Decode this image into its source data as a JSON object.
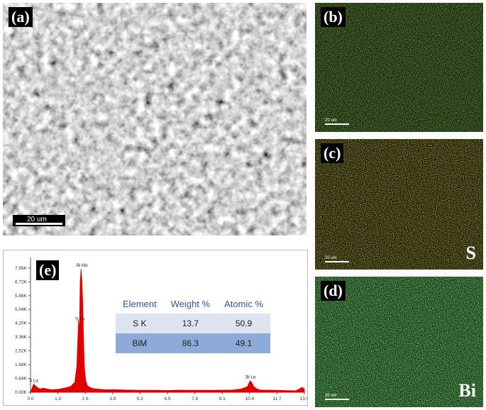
{
  "panels": {
    "a": {
      "label": "(a)",
      "scale_text": "20 um"
    },
    "b": {
      "label": "(b)",
      "scale_text": "20 um",
      "element": ""
    },
    "c": {
      "label": "(c)",
      "scale_text": "20 um",
      "element": "S"
    },
    "d": {
      "label": "(d)",
      "scale_text": "20 um",
      "element": "Bi"
    },
    "e": {
      "label": "(e)"
    }
  },
  "colors": {
    "b_map": "#4a7a1a",
    "c_map": "#c8c020",
    "d_map": "#2ea82e",
    "spectrum": "#e00000",
    "table_header": "#2f5597"
  },
  "chart_data": {
    "type": "area",
    "x_ticks": [
      "0.0",
      "1.3",
      "2.6",
      "3.9",
      "5.2",
      "6.5",
      "7.8",
      "9.1",
      "10.4",
      "11.7",
      "13.0"
    ],
    "y_ticks": [
      "0.00K",
      "0.84K",
      "1.68K",
      "2.52K",
      "3.36K",
      "4.20K",
      "5.04K",
      "5.88K",
      "6.72K",
      "7.56K"
    ],
    "xlim": [
      0,
      13.0
    ],
    "ylim": [
      0,
      8.2
    ],
    "series": [
      {
        "x": [
          0.0,
          0.15,
          0.3,
          0.45,
          0.6,
          0.8,
          1.0,
          1.3,
          1.6,
          1.9,
          2.1,
          2.2,
          2.28,
          2.32,
          2.36,
          2.4,
          2.44,
          2.48,
          2.52,
          2.56,
          2.62,
          2.7,
          2.8,
          3.0,
          3.3,
          3.6,
          3.9,
          4.5,
          5.2,
          6.0,
          6.5,
          7.0,
          7.8,
          8.5,
          9.1,
          9.6,
          10.0,
          10.3,
          10.42,
          10.5,
          10.6,
          10.75,
          10.9,
          11.3,
          11.7,
          12.2,
          12.6,
          12.9,
          13.0
        ],
        "y": [
          0.0,
          0.5,
          0.3,
          0.2,
          0.25,
          0.2,
          0.15,
          0.18,
          0.25,
          0.35,
          0.6,
          1.6,
          4.4,
          3.6,
          6.8,
          7.5,
          6.8,
          5.5,
          3.2,
          1.5,
          0.7,
          0.4,
          0.3,
          0.22,
          0.18,
          0.15,
          0.16,
          0.14,
          0.12,
          0.12,
          0.11,
          0.13,
          0.12,
          0.12,
          0.13,
          0.14,
          0.2,
          0.35,
          0.7,
          0.6,
          0.35,
          0.2,
          0.14,
          0.13,
          0.12,
          0.1,
          0.09,
          0.3,
          0.2
        ]
      }
    ],
    "annotations": [
      {
        "text": "Bi Mα",
        "x": 2.45,
        "y": 7.55
      },
      {
        "text": "S Kα",
        "x": 2.35,
        "y": 4.3
      },
      {
        "text": "S Lα",
        "x": 0.15,
        "y": 0.55
      },
      {
        "text": "Bi Lα",
        "x": 10.45,
        "y": 0.75
      }
    ],
    "table": {
      "headers": [
        "Element",
        "Weight %",
        "Atomic %"
      ],
      "rows": [
        [
          "S K",
          "13.7",
          "50.9"
        ],
        [
          "BiM",
          "86.3",
          "49.1"
        ]
      ]
    }
  }
}
